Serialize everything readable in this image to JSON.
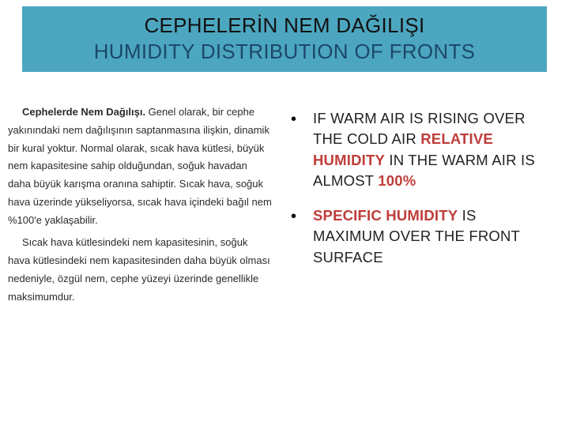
{
  "colors": {
    "header_bg": "#4ca6bf",
    "title_top": "#111111",
    "title_bottom": "#1c486a",
    "highlight": "#bf3d3a",
    "body_text": "#222222",
    "turkish_text": "#2a2a2a"
  },
  "header": {
    "title_tr": "CEPHELERİN NEM DAĞILIŞI",
    "title_en": "HUMIDITY DISTRIBUTION OF FRONTS"
  },
  "left": {
    "p1_lead": "Cephelerde Nem Dağılışı.",
    "p1_rest": " Genel olarak, bir cephe yakınındaki nem dağılışının saptanmasına ilişkin, dinamik bir kural yoktur. Normal olarak, sıcak hava kütlesi, büyük nem kapasitesine sahip olduğundan, soğuk havadan daha büyük karışma oranına sahiptir. Sıcak hava, soğuk hava üzerinde yükseliyorsa, sıcak hava içindeki bağıl nem %100'e yaklaşabilir.",
    "p2": "Sıcak hava kütlesindeki nem kapasitesinin, soğuk hava kütlesindeki nem kapasitesinden daha büyük olması nedeniyle, özgül nem, cephe yüzeyi üzerinde genellikle maksimumdur."
  },
  "bullets": [
    {
      "pre": "IF WARM AIR IS RISING OVER THE COLD AIR ",
      "hl1": "RELATIVE HUMIDITY",
      "mid": " IN THE WARM AIR  IS ALMOST ",
      "hl2": "100%"
    },
    {
      "hl1": "SPECIFIC HUMIDITY",
      "rest": " IS MAXIMUM OVER THE FRONT SURFACE"
    }
  ]
}
